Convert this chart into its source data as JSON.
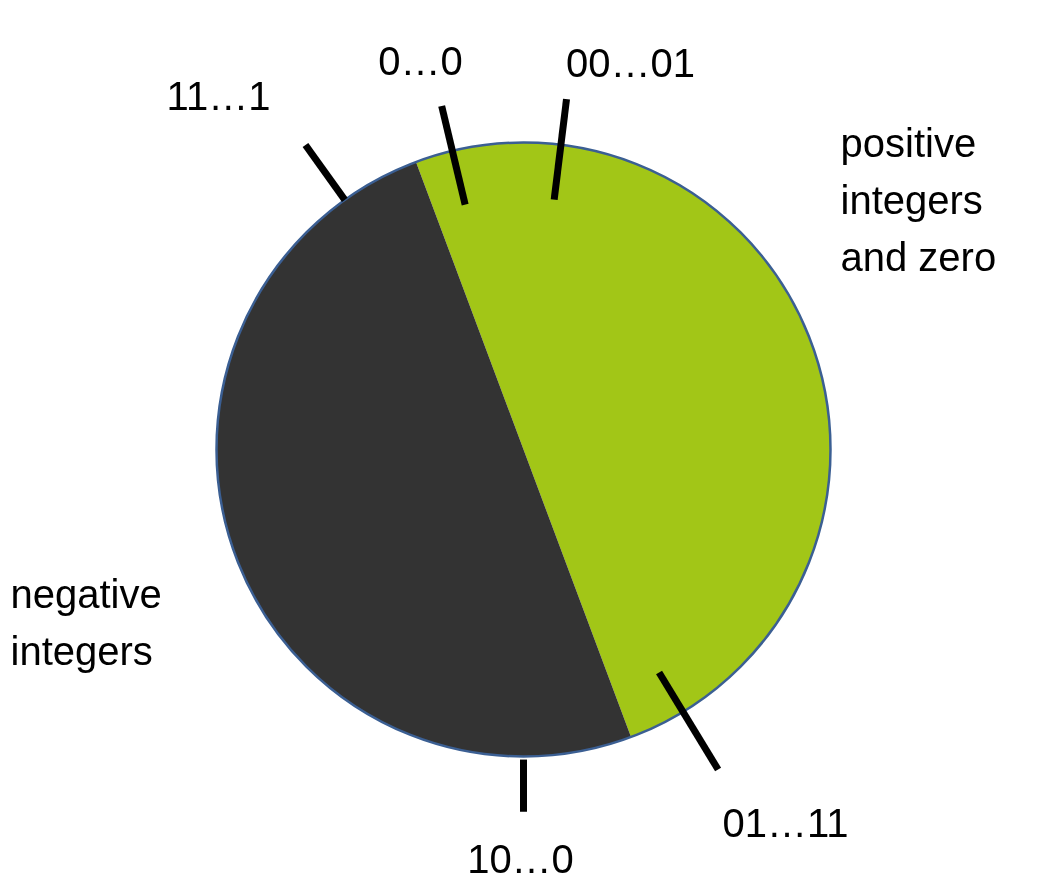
{
  "chart_data": {
    "type": "pie",
    "categories": [
      "positive integers and zero",
      "negative integers"
    ],
    "values": [
      50,
      50
    ],
    "colors": [
      "#a2c617",
      "#333333"
    ],
    "annotations": [
      "0…0",
      "00…01",
      "11…1",
      "01…11",
      "10…0"
    ]
  }
}
